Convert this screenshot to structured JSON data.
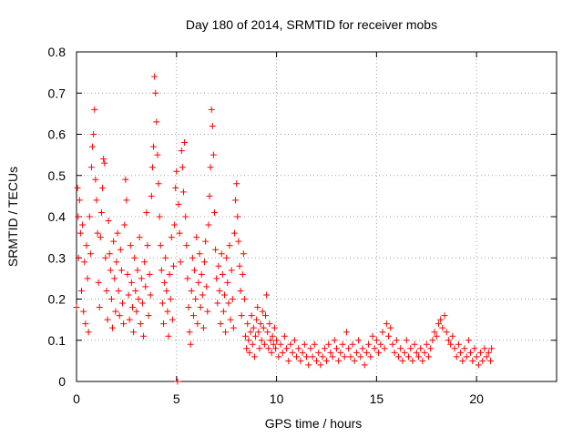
{
  "chart_data": {
    "type": "scatter",
    "title": "Day 180 of 2014, SRMTID for receiver mobs",
    "xlabel": "GPS time / hours",
    "ylabel": "SRMTID / TECUs",
    "xlim": [
      0,
      24
    ],
    "ylim": [
      0,
      0.8
    ],
    "x_ticks": [
      0,
      5,
      10,
      15,
      20
    ],
    "x_tick_labels": [
      "0",
      "5",
      "10",
      "15",
      "20"
    ],
    "y_ticks": [
      0,
      0.1,
      0.2,
      0.3,
      0.4,
      0.5,
      0.6,
      0.7,
      0.8
    ],
    "y_tick_labels": [
      "0",
      "0.1",
      "0.2",
      "0.3",
      "0.4",
      "0.5",
      "0.6",
      "0.7",
      "0.8"
    ],
    "grid": true,
    "marker": "+",
    "color": "#ff0000",
    "series": [
      {
        "name": "SRMTID",
        "points": [
          [
            0.0,
            0.18
          ],
          [
            0.05,
            0.47
          ],
          [
            0.08,
            0.4
          ],
          [
            0.1,
            0.3
          ],
          [
            0.15,
            0.44
          ],
          [
            0.2,
            0.36
          ],
          [
            0.25,
            0.22
          ],
          [
            0.3,
            0.38
          ],
          [
            0.35,
            0.17
          ],
          [
            0.4,
            0.29
          ],
          [
            0.45,
            0.14
          ],
          [
            0.5,
            0.33
          ],
          [
            0.55,
            0.25
          ],
          [
            0.6,
            0.12
          ],
          [
            0.65,
            0.4
          ],
          [
            0.7,
            0.31
          ],
          [
            0.75,
            0.52
          ],
          [
            0.8,
            0.57
          ],
          [
            0.85,
            0.6
          ],
          [
            0.9,
            0.66
          ],
          [
            0.95,
            0.49
          ],
          [
            1.0,
            0.44
          ],
          [
            1.05,
            0.36
          ],
          [
            1.1,
            0.24
          ],
          [
            1.15,
            0.18
          ],
          [
            1.2,
            0.35
          ],
          [
            1.25,
            0.41
          ],
          [
            1.3,
            0.47
          ],
          [
            1.35,
            0.54
          ],
          [
            1.4,
            0.53
          ],
          [
            1.45,
            0.3
          ],
          [
            1.5,
            0.22
          ],
          [
            1.55,
            0.15
          ],
          [
            1.6,
            0.39
          ],
          [
            1.65,
            0.31
          ],
          [
            1.7,
            0.27
          ],
          [
            1.75,
            0.2
          ],
          [
            1.8,
            0.13
          ],
          [
            1.85,
            0.34
          ],
          [
            1.9,
            0.25
          ],
          [
            1.95,
            0.17
          ],
          [
            2.0,
            0.29
          ],
          [
            2.05,
            0.36
          ],
          [
            2.1,
            0.22
          ],
          [
            2.15,
            0.16
          ],
          [
            2.2,
            0.32
          ],
          [
            2.25,
            0.27
          ],
          [
            2.3,
            0.19
          ],
          [
            2.35,
            0.14
          ],
          [
            2.4,
            0.38
          ],
          [
            2.45,
            0.49
          ],
          [
            2.5,
            0.44
          ],
          [
            2.55,
            0.26
          ],
          [
            2.6,
            0.21
          ],
          [
            2.65,
            0.15
          ],
          [
            2.7,
            0.33
          ],
          [
            2.75,
            0.24
          ],
          [
            2.8,
            0.18
          ],
          [
            2.85,
            0.12
          ],
          [
            2.9,
            0.3
          ],
          [
            2.95,
            0.22
          ],
          [
            3.0,
            0.17
          ],
          [
            3.05,
            0.27
          ],
          [
            3.1,
            0.2
          ],
          [
            3.15,
            0.35
          ],
          [
            3.2,
            0.14
          ],
          [
            3.25,
            0.25
          ],
          [
            3.3,
            0.19
          ],
          [
            3.35,
            0.11
          ],
          [
            3.4,
            0.29
          ],
          [
            3.45,
            0.23
          ],
          [
            3.5,
            0.41
          ],
          [
            3.55,
            0.33
          ],
          [
            3.6,
            0.16
          ],
          [
            3.65,
            0.26
          ],
          [
            3.7,
            0.21
          ],
          [
            3.75,
            0.45
          ],
          [
            3.8,
            0.52
          ],
          [
            3.85,
            0.57
          ],
          [
            3.9,
            0.74
          ],
          [
            3.95,
            0.7
          ],
          [
            4.0,
            0.63
          ],
          [
            4.05,
            0.55
          ],
          [
            4.1,
            0.48
          ],
          [
            4.15,
            0.4
          ],
          [
            4.2,
            0.33
          ],
          [
            4.25,
            0.27
          ],
          [
            4.3,
            0.19
          ],
          [
            4.35,
            0.14
          ],
          [
            4.4,
            0.24
          ],
          [
            4.45,
            0.3
          ],
          [
            4.5,
            0.22
          ],
          [
            4.55,
            0.17
          ],
          [
            4.6,
            0.11
          ],
          [
            4.65,
            0.26
          ],
          [
            4.7,
            0.2
          ],
          [
            4.75,
            0.35
          ],
          [
            4.8,
            0.15
          ],
          [
            4.85,
            0.28
          ],
          [
            4.9,
            0.38
          ],
          [
            4.95,
            0.47
          ],
          [
            5.0,
            0.51
          ],
          [
            5.05,
            0.0
          ],
          [
            5.1,
            0.43
          ],
          [
            5.15,
            0.36
          ],
          [
            5.2,
            0.29
          ],
          [
            5.25,
            0.56
          ],
          [
            5.3,
            0.52
          ],
          [
            5.35,
            0.46
          ],
          [
            5.4,
            0.58
          ],
          [
            5.45,
            0.4
          ],
          [
            5.5,
            0.33
          ],
          [
            5.55,
            0.25
          ],
          [
            5.6,
            0.18
          ],
          [
            5.65,
            0.12
          ],
          [
            5.7,
            0.09
          ],
          [
            5.75,
            0.22
          ],
          [
            5.8,
            0.3
          ],
          [
            5.85,
            0.16
          ],
          [
            5.9,
            0.27
          ],
          [
            5.95,
            0.2
          ],
          [
            6.0,
            0.35
          ],
          [
            6.05,
            0.14
          ],
          [
            6.1,
            0.24
          ],
          [
            6.15,
            0.31
          ],
          [
            6.2,
            0.18
          ],
          [
            6.25,
            0.26
          ],
          [
            6.3,
            0.21
          ],
          [
            6.35,
            0.13
          ],
          [
            6.4,
            0.29
          ],
          [
            6.45,
            0.34
          ],
          [
            6.5,
            0.23
          ],
          [
            6.55,
            0.17
          ],
          [
            6.6,
            0.38
          ],
          [
            6.65,
            0.45
          ],
          [
            6.7,
            0.52
          ],
          [
            6.75,
            0.66
          ],
          [
            6.8,
            0.62
          ],
          [
            6.85,
            0.55
          ],
          [
            6.9,
            0.41
          ],
          [
            6.95,
            0.32
          ],
          [
            7.0,
            0.25
          ],
          [
            7.05,
            0.19
          ],
          [
            7.1,
            0.28
          ],
          [
            7.15,
            0.22
          ],
          [
            7.2,
            0.14
          ],
          [
            7.25,
            0.31
          ],
          [
            7.3,
            0.26
          ],
          [
            7.35,
            0.17
          ],
          [
            7.4,
            0.21
          ],
          [
            7.45,
            0.12
          ],
          [
            7.5,
            0.3
          ],
          [
            7.55,
            0.24
          ],
          [
            7.6,
            0.19
          ],
          [
            7.65,
            0.33
          ],
          [
            7.7,
            0.15
          ],
          [
            7.75,
            0.27
          ],
          [
            7.8,
            0.2
          ],
          [
            7.85,
            0.13
          ],
          [
            7.9,
            0.36
          ],
          [
            7.95,
            0.44
          ],
          [
            8.0,
            0.48
          ],
          [
            8.05,
            0.4
          ],
          [
            8.1,
            0.34
          ],
          [
            8.15,
            0.28
          ],
          [
            8.2,
            0.22
          ],
          [
            8.25,
            0.16
          ],
          [
            8.3,
            0.26
          ],
          [
            8.35,
            0.31
          ],
          [
            8.4,
            0.2
          ],
          [
            8.45,
            0.11
          ],
          [
            8.5,
            0.08
          ],
          [
            8.55,
            0.14
          ],
          [
            8.6,
            0.1
          ],
          [
            8.65,
            0.07
          ],
          [
            8.7,
            0.12
          ],
          [
            8.75,
            0.16
          ],
          [
            8.8,
            0.09
          ],
          [
            8.85,
            0.13
          ],
          [
            8.9,
            0.06
          ],
          [
            8.95,
            0.11
          ],
          [
            9.0,
            0.15
          ],
          [
            9.05,
            0.18
          ],
          [
            9.1,
            0.12
          ],
          [
            9.15,
            0.08
          ],
          [
            9.2,
            0.14
          ],
          [
            9.25,
            0.1
          ],
          [
            9.3,
            0.17
          ],
          [
            9.35,
            0.13
          ],
          [
            9.4,
            0.09
          ],
          [
            9.45,
            0.16
          ],
          [
            9.5,
            0.21
          ],
          [
            9.55,
            0.12
          ],
          [
            9.6,
            0.08
          ],
          [
            9.65,
            0.14
          ],
          [
            9.7,
            0.1
          ],
          [
            9.75,
            0.07
          ],
          [
            9.8,
            0.11
          ],
          [
            9.85,
            0.09
          ],
          [
            9.9,
            0.13
          ],
          [
            9.95,
            0.08
          ],
          [
            10.0,
            0.1
          ],
          [
            10.1,
            0.06
          ],
          [
            10.2,
            0.09
          ],
          [
            10.3,
            0.07
          ],
          [
            10.4,
            0.11
          ],
          [
            10.5,
            0.08
          ],
          [
            10.6,
            0.05
          ],
          [
            10.7,
            0.09
          ],
          [
            10.8,
            0.07
          ],
          [
            10.9,
            0.1
          ],
          [
            11.0,
            0.06
          ],
          [
            11.1,
            0.08
          ],
          [
            11.2,
            0.05
          ],
          [
            11.3,
            0.07
          ],
          [
            11.4,
            0.09
          ],
          [
            11.5,
            0.06
          ],
          [
            11.6,
            0.04
          ],
          [
            11.7,
            0.08
          ],
          [
            11.8,
            0.06
          ],
          [
            11.9,
            0.09
          ],
          [
            12.0,
            0.05
          ],
          [
            12.1,
            0.07
          ],
          [
            12.2,
            0.04
          ],
          [
            12.3,
            0.06
          ],
          [
            12.4,
            0.08
          ],
          [
            12.5,
            0.05
          ],
          [
            12.6,
            0.09
          ],
          [
            12.7,
            0.07
          ],
          [
            12.8,
            0.06
          ],
          [
            12.9,
            0.1
          ],
          [
            13.0,
            0.08
          ],
          [
            13.1,
            0.05
          ],
          [
            13.2,
            0.07
          ],
          [
            13.3,
            0.09
          ],
          [
            13.4,
            0.06
          ],
          [
            13.5,
            0.12
          ],
          [
            13.6,
            0.08
          ],
          [
            13.7,
            0.06
          ],
          [
            13.8,
            0.09
          ],
          [
            13.9,
            0.05
          ],
          [
            14.0,
            0.07
          ],
          [
            14.1,
            0.1
          ],
          [
            14.2,
            0.06
          ],
          [
            14.3,
            0.08
          ],
          [
            14.4,
            0.04
          ],
          [
            14.5,
            0.07
          ],
          [
            14.6,
            0.09
          ],
          [
            14.7,
            0.06
          ],
          [
            14.8,
            0.11
          ],
          [
            14.9,
            0.08
          ],
          [
            15.0,
            0.1
          ],
          [
            15.1,
            0.07
          ],
          [
            15.2,
            0.09
          ],
          [
            15.3,
            0.12
          ],
          [
            15.4,
            0.08
          ],
          [
            15.5,
            0.14
          ],
          [
            15.6,
            0.11
          ],
          [
            15.7,
            0.13
          ],
          [
            15.8,
            0.09
          ],
          [
            15.9,
            0.07
          ],
          [
            16.0,
            0.1
          ],
          [
            16.1,
            0.06
          ],
          [
            16.2,
            0.08
          ],
          [
            16.3,
            0.05
          ],
          [
            16.4,
            0.07
          ],
          [
            16.5,
            0.1
          ],
          [
            16.6,
            0.06
          ],
          [
            16.7,
            0.08
          ],
          [
            16.8,
            0.05
          ],
          [
            16.9,
            0.09
          ],
          [
            17.0,
            0.07
          ],
          [
            17.1,
            0.06
          ],
          [
            17.2,
            0.08
          ],
          [
            17.3,
            0.05
          ],
          [
            17.4,
            0.07
          ],
          [
            17.5,
            0.09
          ],
          [
            17.6,
            0.06
          ],
          [
            17.7,
            0.08
          ],
          [
            17.8,
            0.1
          ],
          [
            17.9,
            0.12
          ],
          [
            18.0,
            0.11
          ],
          [
            18.1,
            0.14
          ],
          [
            18.2,
            0.15
          ],
          [
            18.3,
            0.13
          ],
          [
            18.4,
            0.16
          ],
          [
            18.5,
            0.12
          ],
          [
            18.6,
            0.1
          ],
          [
            18.7,
            0.09
          ],
          [
            18.8,
            0.11
          ],
          [
            18.9,
            0.08
          ],
          [
            19.0,
            0.06
          ],
          [
            19.1,
            0.09
          ],
          [
            19.2,
            0.07
          ],
          [
            19.3,
            0.05
          ],
          [
            19.4,
            0.08
          ],
          [
            19.5,
            0.06
          ],
          [
            19.6,
            0.1
          ],
          [
            19.7,
            0.07
          ],
          [
            19.8,
            0.05
          ],
          [
            19.9,
            0.08
          ],
          [
            20.0,
            0.06
          ],
          [
            20.1,
            0.04
          ],
          [
            20.2,
            0.07
          ],
          [
            20.3,
            0.05
          ],
          [
            20.4,
            0.08
          ],
          [
            20.5,
            0.06
          ],
          [
            20.6,
            0.07
          ],
          [
            20.7,
            0.05
          ],
          [
            20.75,
            0.08
          ]
        ]
      }
    ]
  }
}
